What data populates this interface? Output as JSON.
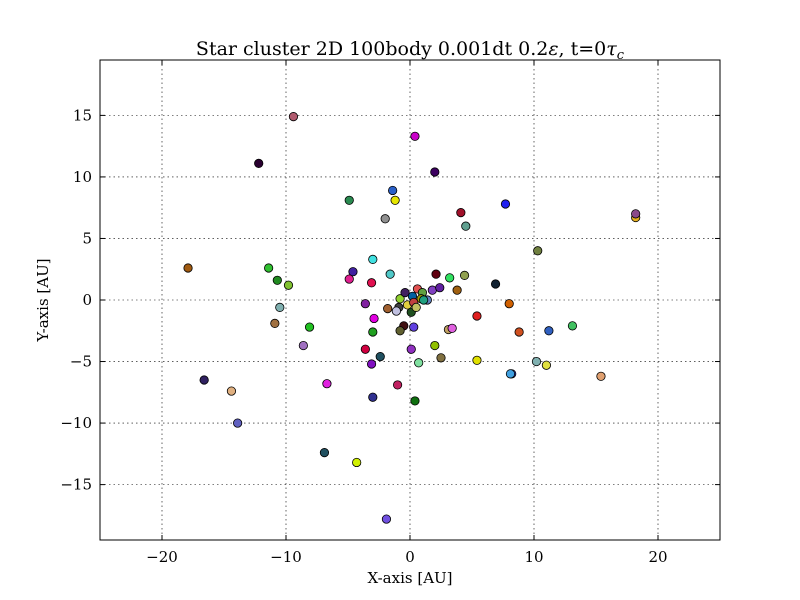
{
  "chart_data": {
    "type": "scatter",
    "title": "Star cluster 2D 100body 0.001dt 0.2",
    "title_eps": "ε",
    "title_time": ", t=0",
    "title_tau": "τ",
    "title_tau_sub": "c",
    "xlabel": "X-axis [AU]",
    "ylabel": "Y-axis [AU]",
    "xlim": [
      -25,
      25
    ],
    "ylim": [
      -19.5,
      19.5
    ],
    "xticks": [
      -20,
      -10,
      0,
      10,
      20
    ],
    "xtick_labels": [
      "−20",
      "−10",
      "0",
      "10",
      "20"
    ],
    "yticks": [
      -15,
      -10,
      -5,
      0,
      5,
      10,
      15
    ],
    "ytick_labels": [
      "−15",
      "−10",
      "−5",
      "0",
      "5",
      "10",
      "15"
    ],
    "grid": true,
    "legend": false,
    "points": [
      {
        "x": -9.4,
        "y": 14.9,
        "color": "#b05a6e"
      },
      {
        "x": 0.4,
        "y": 13.3,
        "color": "#c800c8"
      },
      {
        "x": -12.2,
        "y": 11.1,
        "color": "#2a0030"
      },
      {
        "x": 2.0,
        "y": 10.4,
        "color": "#3c0060"
      },
      {
        "x": -1.4,
        "y": 8.9,
        "color": "#2a60c8"
      },
      {
        "x": -4.9,
        "y": 8.1,
        "color": "#2a8a50"
      },
      {
        "x": -1.2,
        "y": 8.1,
        "color": "#e6e600"
      },
      {
        "x": 7.7,
        "y": 7.8,
        "color": "#2020f0"
      },
      {
        "x": 4.1,
        "y": 7.1,
        "color": "#a0102a"
      },
      {
        "x": -2.0,
        "y": 6.6,
        "color": "#909090"
      },
      {
        "x": 4.5,
        "y": 6.0,
        "color": "#60a090"
      },
      {
        "x": 18.2,
        "y": 6.7,
        "color": "#e6b020"
      },
      {
        "x": 18.2,
        "y": 7.0,
        "color": "#8a4a8a"
      },
      {
        "x": 10.3,
        "y": 4.0,
        "color": "#708040"
      },
      {
        "x": -3.0,
        "y": 3.3,
        "color": "#40e0e0"
      },
      {
        "x": -1.6,
        "y": 2.1,
        "color": "#50c8c8"
      },
      {
        "x": -17.9,
        "y": 2.6,
        "color": "#a05a10"
      },
      {
        "x": -11.4,
        "y": 2.6,
        "color": "#30c030"
      },
      {
        "x": -10.7,
        "y": 1.6,
        "color": "#208a20"
      },
      {
        "x": -9.8,
        "y": 1.2,
        "color": "#80c030"
      },
      {
        "x": -4.6,
        "y": 2.3,
        "color": "#4020a0"
      },
      {
        "x": -4.9,
        "y": 1.7,
        "color": "#e02090"
      },
      {
        "x": -3.1,
        "y": 1.4,
        "color": "#e01050"
      },
      {
        "x": 2.1,
        "y": 2.1,
        "color": "#600010"
      },
      {
        "x": 3.2,
        "y": 1.8,
        "color": "#30e060"
      },
      {
        "x": 4.4,
        "y": 2.0,
        "color": "#90a050"
      },
      {
        "x": 6.9,
        "y": 1.3,
        "color": "#102030"
      },
      {
        "x": 3.8,
        "y": 0.8,
        "color": "#a06010"
      },
      {
        "x": 8.0,
        "y": -0.3,
        "color": "#d06000"
      },
      {
        "x": -10.5,
        "y": -0.6,
        "color": "#80b0b0"
      },
      {
        "x": -10.9,
        "y": -1.9,
        "color": "#a07040"
      },
      {
        "x": -8.1,
        "y": -2.2,
        "color": "#20c020"
      },
      {
        "x": -3.6,
        "y": -0.3,
        "color": "#8020a0"
      },
      {
        "x": -2.9,
        "y": -1.5,
        "color": "#e000e0"
      },
      {
        "x": -1.8,
        "y": -0.7,
        "color": "#a06030"
      },
      {
        "x": -0.8,
        "y": 0.1,
        "color": "#90d030"
      },
      {
        "x": -0.4,
        "y": 0.6,
        "color": "#402060"
      },
      {
        "x": 0.2,
        "y": 0.3,
        "color": "#0060a0"
      },
      {
        "x": 0.6,
        "y": 0.9,
        "color": "#e05050"
      },
      {
        "x": 1.0,
        "y": 0.6,
        "color": "#60a040"
      },
      {
        "x": 1.4,
        "y": 0.0,
        "color": "#6080c0"
      },
      {
        "x": 1.8,
        "y": 0.8,
        "color": "#8040c0"
      },
      {
        "x": 2.4,
        "y": 1.0,
        "color": "#6020a0"
      },
      {
        "x": 0.9,
        "y": 0.1,
        "color": "#a0a000"
      },
      {
        "x": 1.1,
        "y": 0.0,
        "color": "#20a080"
      },
      {
        "x": -0.2,
        "y": -0.4,
        "color": "#e0d040"
      },
      {
        "x": 0.3,
        "y": -0.2,
        "color": "#c04040"
      },
      {
        "x": -0.9,
        "y": -0.6,
        "color": "#404040"
      },
      {
        "x": -1.1,
        "y": -0.9,
        "color": "#c0c0e0"
      },
      {
        "x": 0.1,
        "y": -1.0,
        "color": "#205020"
      },
      {
        "x": 0.5,
        "y": -0.6,
        "color": "#c0c060"
      },
      {
        "x": -0.5,
        "y": -2.1,
        "color": "#401010"
      },
      {
        "x": -0.8,
        "y": -2.5,
        "color": "#606030"
      },
      {
        "x": 0.3,
        "y": -2.2,
        "color": "#6040e0"
      },
      {
        "x": -3.0,
        "y": -2.6,
        "color": "#20a020"
      },
      {
        "x": 5.4,
        "y": -1.3,
        "color": "#e02020"
      },
      {
        "x": 3.1,
        "y": -2.4,
        "color": "#c0a060"
      },
      {
        "x": 3.4,
        "y": -2.3,
        "color": "#e060e0"
      },
      {
        "x": 8.8,
        "y": -2.6,
        "color": "#d05020"
      },
      {
        "x": 11.2,
        "y": -2.5,
        "color": "#3060c0"
      },
      {
        "x": 13.1,
        "y": -2.1,
        "color": "#40c060"
      },
      {
        "x": -8.6,
        "y": -3.7,
        "color": "#a070c0"
      },
      {
        "x": -3.6,
        "y": -4.0,
        "color": "#d00040"
      },
      {
        "x": -2.4,
        "y": -4.6,
        "color": "#205060"
      },
      {
        "x": -3.1,
        "y": -5.2,
        "color": "#8010c0"
      },
      {
        "x": 0.1,
        "y": -4.0,
        "color": "#9030c0"
      },
      {
        "x": 0.7,
        "y": -5.1,
        "color": "#80e0a0"
      },
      {
        "x": 2.0,
        "y": -3.7,
        "color": "#90c000"
      },
      {
        "x": 2.5,
        "y": -4.7,
        "color": "#807040"
      },
      {
        "x": 5.4,
        "y": -4.9,
        "color": "#e0e000"
      },
      {
        "x": 10.2,
        "y": -5.0,
        "color": "#80b0b0"
      },
      {
        "x": 11.0,
        "y": -5.3,
        "color": "#e0e040"
      },
      {
        "x": 8.2,
        "y": -6.0,
        "color": "#4040e0"
      },
      {
        "x": 8.1,
        "y": -6.0,
        "color": "#40a0e0"
      },
      {
        "x": 15.4,
        "y": -6.2,
        "color": "#e0a070"
      },
      {
        "x": -16.6,
        "y": -6.5,
        "color": "#302060"
      },
      {
        "x": -14.4,
        "y": -7.4,
        "color": "#e0b080"
      },
      {
        "x": -6.7,
        "y": -6.8,
        "color": "#e020e0"
      },
      {
        "x": -1.0,
        "y": -6.9,
        "color": "#c02060"
      },
      {
        "x": -3.0,
        "y": -7.9,
        "color": "#303090"
      },
      {
        "x": 0.4,
        "y": -8.2,
        "color": "#107010"
      },
      {
        "x": -13.9,
        "y": -10.0,
        "color": "#6060c0"
      },
      {
        "x": -6.9,
        "y": -12.4,
        "color": "#205060"
      },
      {
        "x": -4.3,
        "y": -13.2,
        "color": "#d0f000"
      },
      {
        "x": -1.9,
        "y": -17.8,
        "color": "#7050e0"
      }
    ]
  }
}
